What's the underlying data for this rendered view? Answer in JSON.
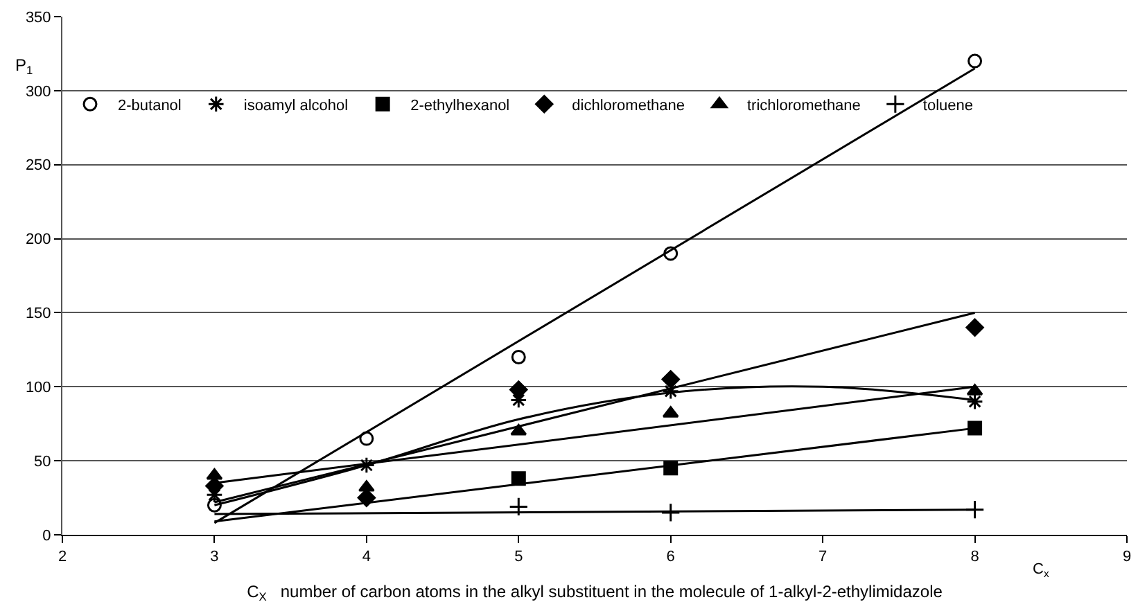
{
  "chart_data": {
    "type": "scatter",
    "ylabel": "P$_{1}$",
    "xlabel": "C$_{X}$   number of carbon atoms in the alkyl substituent in the molecule of 1-alkyl-2-ethylimidazole",
    "annotations": [
      "C$_{x}$"
    ],
    "x": [
      3,
      4,
      5,
      6,
      8
    ],
    "xlim": [
      2,
      9
    ],
    "xticks": [
      2,
      3,
      4,
      5,
      6,
      7,
      8,
      9
    ],
    "ylim": [
      0,
      350
    ],
    "yticks": [
      0,
      50,
      100,
      150,
      200,
      250,
      300,
      350
    ],
    "grid": "y",
    "legend": "top left",
    "series": [
      {
        "name": "2-butanol",
        "color": "#000000",
        "marker": "circle",
        "values": [
          20,
          65,
          120,
          190,
          320
        ]
      },
      {
        "name": "isoamyl alcohol",
        "color": "#000000",
        "marker": "cross",
        "values": [
          27,
          47,
          91,
          97,
          90
        ]
      },
      {
        "name": "2-ethylhexanol",
        "color": "#000000",
        "marker": "square",
        "values": [
          null,
          null,
          38,
          45,
          72
        ]
      },
      {
        "name": "dichloromethane",
        "color": "#000000",
        "marker": "diamond",
        "values": [
          33,
          25,
          98,
          105,
          140
        ]
      },
      {
        "name": "trichloromethane",
        "color": "#000000",
        "marker": "triangle",
        "values": [
          40,
          32,
          70,
          82,
          97
        ]
      },
      {
        "name": "toluene",
        "color": "#000000",
        "marker": "cross",
        "values": [
          null,
          null,
          19,
          15,
          17
        ]
      },
      {
        "type": "line",
        "color": "#000000",
        "marker": "none",
        "line_style": "solid",
        "x": [
          3,
          8
        ],
        "values": [
          8,
          315
        ]
      },
      {
        "type": "line",
        "color": "#000000",
        "marker": "none",
        "line_style": "solid",
        "x": [
          3,
          4,
          5,
          6,
          7,
          8
        ],
        "values": [
          20,
          47,
          78,
          96,
          100,
          91
        ]
      },
      {
        "type": "line",
        "color": "#000000",
        "marker": "none",
        "line_style": "solid",
        "x": [
          3,
          8
        ],
        "values": [
          9,
          72
        ]
      },
      {
        "type": "line",
        "color": "#000000",
        "marker": "none",
        "line_style": "solid",
        "x": [
          3,
          8
        ],
        "values": [
          22,
          150
        ]
      },
      {
        "type": "line",
        "color": "#000000",
        "marker": "none",
        "line_style": "solid",
        "x": [
          3,
          8
        ],
        "values": [
          35,
          100
        ]
      },
      {
        "type": "line",
        "color": "#000000",
        "marker": "none",
        "line_style": "solid",
        "x": [
          3,
          8
        ],
        "values": [
          14,
          17
        ]
      }
    ]
  }
}
